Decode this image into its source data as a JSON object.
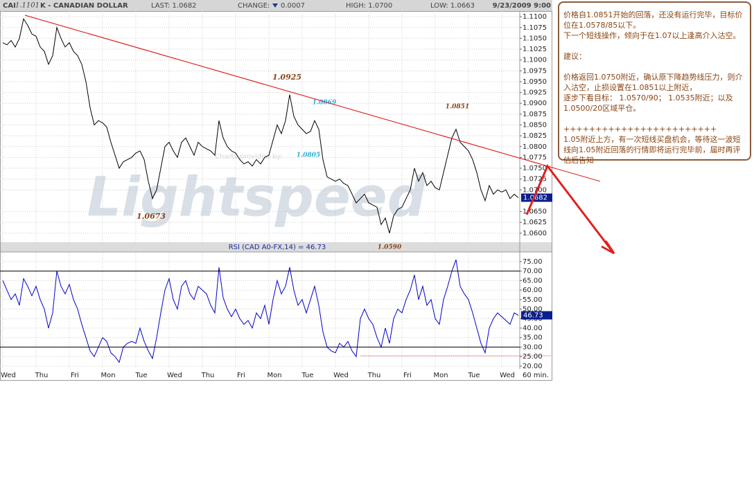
{
  "header": {
    "symbol": "CAI",
    "marker": "1.1101",
    "name": "K - CANADIAN DOLLAR",
    "last": "LAST: 1.0682",
    "change_label": "CHANGE:",
    "change": "0.0007",
    "high": "HIGH: 1.0700",
    "low": "LOW: 1.0663",
    "datetime": "9/23/2009 9:00"
  },
  "watermark": {
    "brand": "Lightspeed",
    "credit": "Charts provided by:"
  },
  "note": [
    "价格自1.0851开始的回落，还没有运行完毕，目标价位在1.0578/85以下。",
    "下一个短线操作，倾向于在1.07以上逢高介入沽空。",
    "建议：",
    "价格返回1.0750附近，确认原下降趋势线压力，则介入沽空，止损设置在1.0851以上附近，",
    "逐步下看目标： 1.0570/90；  1.0535附近；以及1.0500/20区域平仓。",
    "++++++++++++++++++++++++",
    "1.05附近上方，有一次短线买盘机会，等待这一波短线向1.05附近回落的行情即将运行完毕前，届时再评估后告知"
  ],
  "chart_data": [
    {
      "type": "line",
      "color": "#000000",
      "last_label": "1.0682",
      "annotations": [
        "1.0925",
        "1.0869",
        "1.0805",
        "1.0673",
        "1.0590",
        "1.0851"
      ],
      "values": [
        1.104,
        1.1035,
        1.1045,
        1.103,
        1.105,
        1.1095,
        1.108,
        1.106,
        1.1055,
        1.103,
        1.102,
        1.099,
        1.101,
        1.1075,
        1.105,
        1.103,
        1.104,
        1.102,
        1.101,
        1.099,
        1.095,
        1.089,
        1.085,
        1.086,
        1.0855,
        1.0845,
        1.081,
        1.078,
        1.075,
        1.0765,
        1.077,
        1.0775,
        1.0785,
        1.079,
        1.077,
        1.072,
        1.068,
        1.07,
        1.075,
        1.08,
        1.081,
        1.079,
        1.0775,
        1.081,
        1.082,
        1.08,
        1.078,
        1.081,
        1.08,
        1.0795,
        1.079,
        1.078,
        1.086,
        1.082,
        1.08,
        1.079,
        1.0785,
        1.077,
        1.076,
        1.0765,
        1.0755,
        1.077,
        1.076,
        1.0775,
        1.078,
        1.0815,
        1.085,
        1.083,
        1.086,
        1.092,
        1.087,
        1.085,
        1.084,
        1.083,
        1.0835,
        1.086,
        1.084,
        1.077,
        1.073,
        1.0725,
        1.072,
        1.0725,
        1.0715,
        1.071,
        1.069,
        1.067,
        1.068,
        1.069,
        1.067,
        1.0665,
        1.066,
        1.062,
        1.0635,
        1.06,
        1.064,
        1.0655,
        1.066,
        1.068,
        1.07,
        1.075,
        1.072,
        1.074,
        1.071,
        1.072,
        1.0705,
        1.07,
        1.074,
        1.078,
        1.082,
        1.084,
        1.081,
        1.08,
        1.079,
        1.077,
        1.074,
        1.07,
        1.0675,
        1.071,
        1.069,
        1.07,
        1.0695,
        1.07,
        1.068,
        1.069,
        1.0682
      ],
      "ylim": [
        1.0579,
        1.1113
      ],
      "yticks": [
        {
          "value": 1.11,
          "label": "1.1100"
        },
        {
          "value": 1.1075,
          "label": "1.1075"
        },
        {
          "value": 1.105,
          "label": "1.1050"
        },
        {
          "value": 1.1025,
          "label": "1.1025"
        },
        {
          "value": 1.1,
          "label": "1.1000"
        },
        {
          "value": 1.0975,
          "label": "1.0975"
        },
        {
          "value": 1.095,
          "label": "1.0950"
        },
        {
          "value": 1.0925,
          "label": "1.0925"
        },
        {
          "value": 1.09,
          "label": "1.0900"
        },
        {
          "value": 1.0875,
          "label": "1.0875"
        },
        {
          "value": 1.085,
          "label": "1.0850"
        },
        {
          "value": 1.0825,
          "label": "1.0825"
        },
        {
          "value": 1.08,
          "label": "1.0800"
        },
        {
          "value": 1.0775,
          "label": "1.0775"
        },
        {
          "value": 1.075,
          "label": "1.0750"
        },
        {
          "value": 1.0725,
          "label": "1.0725"
        },
        {
          "value": 1.07,
          "label": "1.0700"
        },
        {
          "value": 1.065,
          "label": "1.0650"
        },
        {
          "value": 1.0625,
          "label": "1.0625"
        },
        {
          "value": 1.06,
          "label": "1.0600"
        }
      ],
      "grid": true
    },
    {
      "type": "line",
      "title": "RSI (CAD A0-FX,14) = 46.73",
      "color": "#0000cc",
      "last_label": "46.73",
      "interval": "60 min.",
      "categories": [
        null,
        "Wed",
        null,
        null,
        null,
        null,
        null,
        null,
        null,
        "Thu",
        null,
        null,
        null,
        null,
        null,
        null,
        null,
        "Fri",
        null,
        null,
        null,
        null,
        null,
        null,
        null,
        "Mon",
        null,
        null,
        null,
        null,
        null,
        null,
        null,
        "Tue",
        null,
        null,
        null,
        null,
        null,
        null,
        null,
        "Wed",
        null,
        null,
        null,
        null,
        null,
        null,
        null,
        "Thu",
        null,
        null,
        null,
        null,
        null,
        null,
        null,
        "Fri",
        null,
        null,
        null,
        null,
        null,
        null,
        null,
        "Mon",
        null,
        null,
        null,
        null,
        null,
        null,
        null,
        "Tue",
        null,
        null,
        null,
        null,
        null,
        null,
        null,
        "Wed",
        null,
        null,
        null,
        null,
        null,
        null,
        null,
        "Thu",
        null,
        null,
        null,
        null,
        null,
        null,
        null,
        "Fri",
        null,
        null,
        null,
        null,
        null,
        null,
        null,
        "Mon",
        null,
        null,
        null,
        null,
        null,
        null,
        null,
        "Tue",
        null,
        null,
        null,
        null,
        null,
        null,
        null,
        "Wed",
        null,
        null,
        null
      ],
      "values": [
        65,
        60,
        55,
        58,
        52,
        66,
        62,
        57,
        62,
        55,
        50,
        40,
        48,
        70,
        62,
        58,
        63,
        55,
        50,
        42,
        35,
        28,
        25,
        30,
        35,
        33,
        27,
        25,
        22,
        30,
        32,
        33,
        32,
        40,
        33,
        28,
        24,
        35,
        48,
        60,
        66,
        55,
        50,
        62,
        65,
        58,
        55,
        62,
        60,
        58,
        52,
        48,
        72,
        56,
        50,
        46,
        50,
        45,
        42,
        44,
        40,
        48,
        45,
        52,
        42,
        55,
        65,
        58,
        62,
        72,
        60,
        52,
        55,
        48,
        55,
        62,
        52,
        38,
        30,
        28,
        27,
        32,
        30,
        33,
        28,
        25,
        45,
        50,
        45,
        42,
        35,
        30,
        40,
        32,
        45,
        50,
        48,
        55,
        60,
        68,
        55,
        62,
        52,
        55,
        45,
        42,
        55,
        62,
        70,
        76,
        62,
        58,
        55,
        48,
        40,
        32,
        27,
        40,
        45,
        48,
        46,
        44,
        42,
        48,
        46.73
      ],
      "ylim": [
        18.5,
        79.7
      ],
      "yticks": [
        {
          "value": 75,
          "label": "75.00"
        },
        {
          "value": 70,
          "label": "70.00"
        },
        {
          "value": 65,
          "label": "65.00"
        },
        {
          "value": 60,
          "label": "60.00"
        },
        {
          "value": 55,
          "label": "55.00"
        },
        {
          "value": 50,
          "label": "50.00"
        },
        {
          "value": 45,
          "label": "45.00"
        },
        {
          "value": 40,
          "label": "40.00"
        },
        {
          "value": 35,
          "label": "35.00"
        },
        {
          "value": 30,
          "label": "30.00"
        },
        {
          "value": 25,
          "label": "25.00"
        },
        {
          "value": 20,
          "label": "20.00"
        }
      ],
      "levels": [
        70,
        30
      ],
      "grid": true
    }
  ]
}
